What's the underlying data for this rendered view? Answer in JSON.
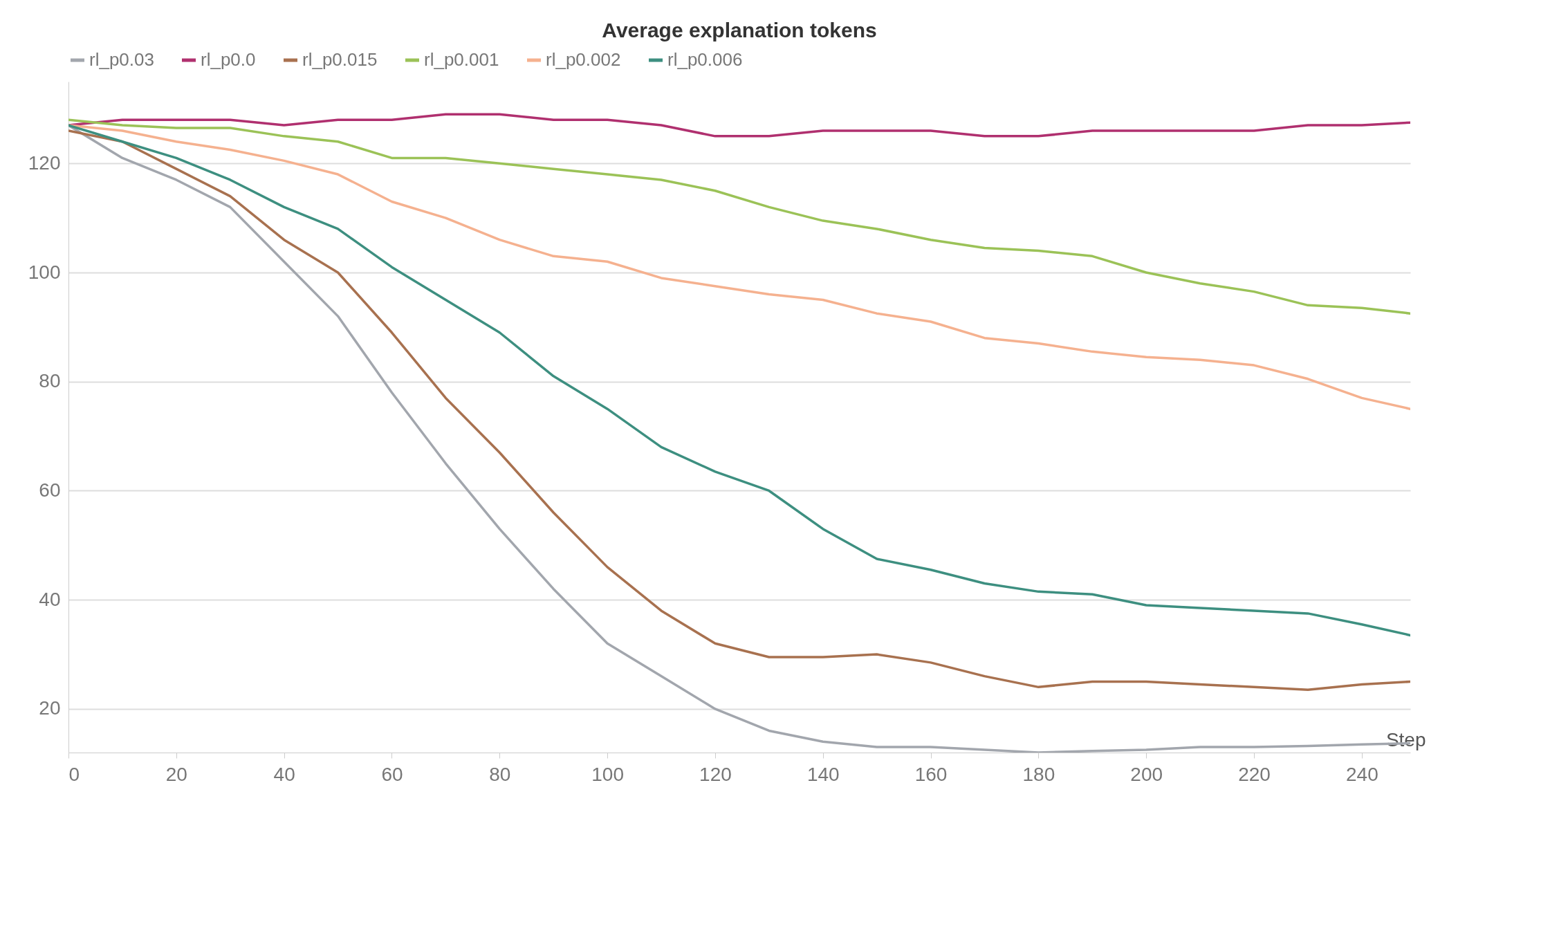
{
  "chart_data": {
    "type": "line",
    "title": "Average explanation tokens",
    "xlabel": "Step",
    "x": [
      0,
      10,
      20,
      30,
      40,
      50,
      60,
      70,
      80,
      90,
      100,
      110,
      120,
      130,
      140,
      150,
      160,
      170,
      180,
      190,
      200,
      210,
      220,
      230,
      240,
      249
    ],
    "series": [
      {
        "name": "rl_p0.03",
        "color": "#a2a6ad",
        "values": [
          127,
          121,
          117,
          112,
          102,
          92,
          78,
          65,
          53,
          42,
          32,
          26,
          20,
          16,
          14,
          13,
          13,
          12.5,
          12,
          12.3,
          12.5,
          13,
          13,
          13.2,
          13.5,
          13.7
        ]
      },
      {
        "name": "rl_p0.0",
        "color": "#b0306f",
        "values": [
          127,
          128,
          128,
          128,
          127,
          128,
          128,
          129,
          129,
          128,
          128,
          127,
          125,
          125,
          126,
          126,
          126,
          125,
          125,
          126,
          126,
          126,
          126,
          127,
          127,
          127.5
        ]
      },
      {
        "name": "rl_p0.015",
        "color": "#a8714f",
        "values": [
          126,
          124,
          119,
          114,
          106,
          100,
          89,
          77,
          67,
          56,
          46,
          38,
          32,
          29.5,
          29.5,
          30,
          28.5,
          26,
          24,
          25,
          25,
          24.5,
          24,
          23.5,
          24.5,
          25
        ]
      },
      {
        "name": "rl_p0.001",
        "color": "#9bc257",
        "values": [
          128,
          127,
          126.5,
          126.5,
          125,
          124,
          121,
          121,
          120,
          119,
          118,
          117,
          115,
          112,
          109.5,
          108,
          106,
          104.5,
          104,
          103,
          100,
          98,
          96.5,
          94,
          93.5,
          92.5
        ]
      },
      {
        "name": "rl_p0.002",
        "color": "#f5b18f",
        "values": [
          127,
          126,
          124,
          122.5,
          120.5,
          118,
          113,
          110,
          106,
          103,
          102,
          99,
          97.5,
          96,
          95,
          92.5,
          91,
          88,
          87,
          85.5,
          84.5,
          84,
          83,
          80.5,
          77,
          75
        ]
      },
      {
        "name": "rl_p0.006",
        "color": "#3d8f80",
        "values": [
          127,
          124,
          121,
          117,
          112,
          108,
          101,
          95,
          89,
          81,
          75,
          68,
          63.5,
          60,
          53,
          47.5,
          45.5,
          43,
          41.5,
          41,
          39,
          38.5,
          38,
          37.5,
          35.5,
          33.5
        ]
      }
    ],
    "xlim": [
      0,
      249
    ],
    "ylim": [
      12,
      135
    ],
    "xticks": [
      0,
      20,
      40,
      60,
      80,
      100,
      120,
      140,
      160,
      180,
      200,
      220,
      240
    ],
    "yticks": [
      20,
      40,
      60,
      80,
      100,
      120
    ],
    "grid": "y",
    "legend": "top",
    "line_style": "solid"
  }
}
